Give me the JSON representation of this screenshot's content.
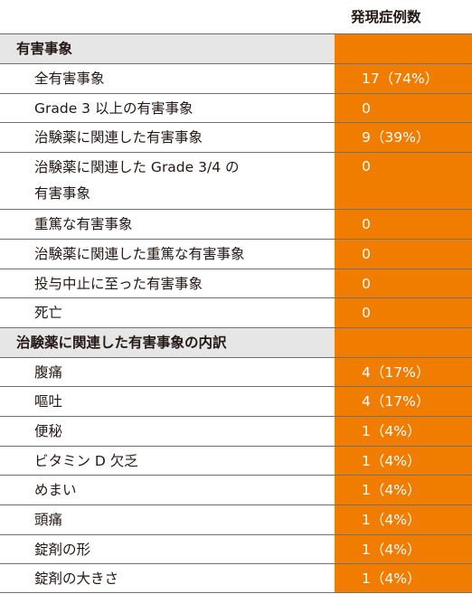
{
  "header": {
    "count_label": "発現症例数"
  },
  "sections": [
    {
      "title": "有害事象",
      "rows": [
        {
          "label": "全有害事象",
          "value": "17（74%）"
        },
        {
          "label": "Grade 3 以上の有害事象",
          "value": "0"
        },
        {
          "label": "治験薬に関連した有害事象",
          "value": "9（39%）"
        },
        {
          "label": "治験薬に関連した Grade 3/4 の",
          "label2": "有害事象",
          "value": "0"
        },
        {
          "label": "重篤な有害事象",
          "value": "0"
        },
        {
          "label": "治験薬に関連した重篤な有害事象",
          "value": "0"
        },
        {
          "label": "投与中止に至った有害事象",
          "value": "0"
        },
        {
          "label": "死亡",
          "value": "0"
        }
      ]
    },
    {
      "title": "治験薬に関連した有害事象の内訳",
      "rows": [
        {
          "label": "腹痛",
          "value": "4（17%）"
        },
        {
          "label": "嘔吐",
          "value": "4（17%）"
        },
        {
          "label": "便秘",
          "value": "1（4%）"
        },
        {
          "label": "ビタミン D 欠乏",
          "value": "1（4%）"
        },
        {
          "label": "めまい",
          "value": "1（4%）"
        },
        {
          "label": "頭痛",
          "value": "1（4%）"
        },
        {
          "label": "錠剤の形",
          "value": "1（4%）"
        },
        {
          "label": "錠剤の大きさ",
          "value": "1（4%）"
        }
      ]
    }
  ]
}
